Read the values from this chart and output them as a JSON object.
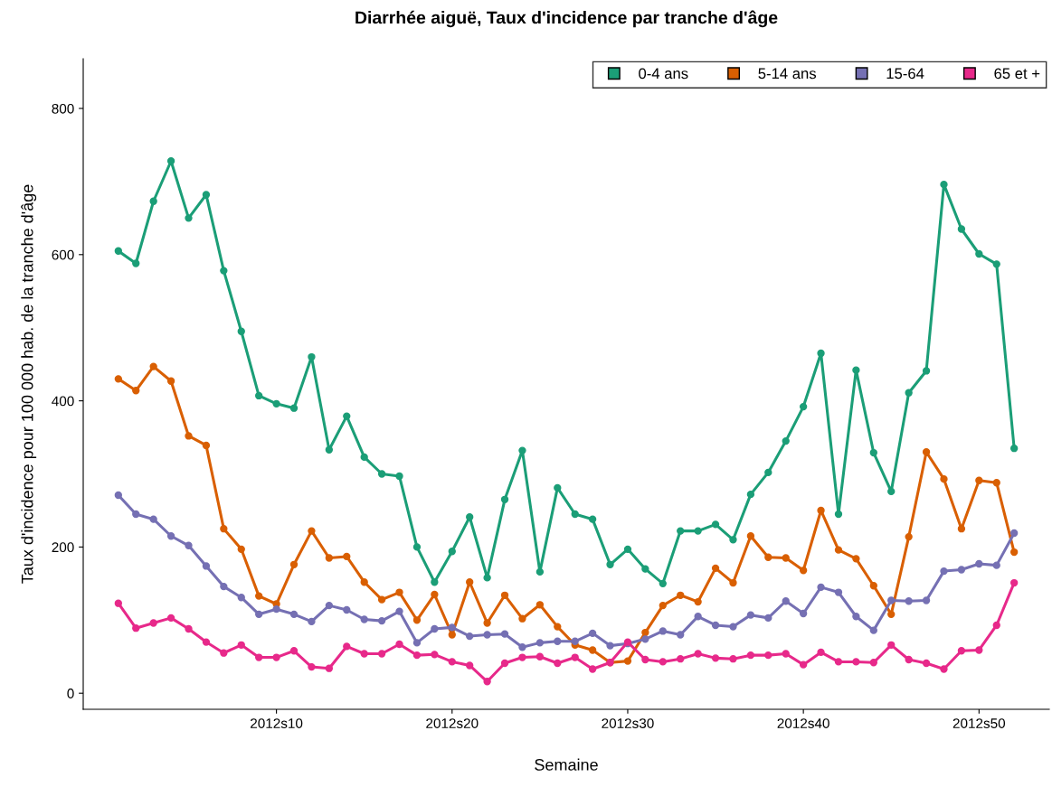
{
  "chart_data": {
    "type": "line",
    "title": "Diarrhée aiguë, Taux d'incidence par tranche d'âge",
    "xlabel": "Semaine",
    "ylabel": "Taux d'incidence pour 100 000 hab. de la tranche d'âge",
    "categories": [
      null,
      null,
      null,
      null,
      null,
      null,
      null,
      null,
      null,
      "2012s10",
      null,
      null,
      null,
      null,
      null,
      null,
      null,
      null,
      null,
      "2012s20",
      null,
      null,
      null,
      null,
      null,
      null,
      null,
      null,
      null,
      "2012s30",
      null,
      null,
      null,
      null,
      null,
      null,
      null,
      null,
      null,
      "2012s40",
      null,
      null,
      null,
      null,
      null,
      null,
      null,
      null,
      null,
      "2012s50",
      null,
      null
    ],
    "ylim": [
      -22,
      868
    ],
    "yticks": [
      0,
      200,
      400,
      600,
      800
    ],
    "grid": false,
    "legend": "top right",
    "marker": "circle",
    "line_style": "solid",
    "series": [
      {
        "name": "0-4 ans",
        "color": "#1b9e77",
        "values": [
          605,
          588,
          673,
          728,
          650,
          682,
          578,
          495,
          407,
          396,
          390,
          460,
          333,
          379,
          323,
          300,
          297,
          200,
          152,
          194,
          241,
          158,
          265,
          332,
          166,
          281,
          245,
          238,
          176,
          197,
          170,
          150,
          222,
          222,
          231,
          210,
          272,
          302,
          345,
          392,
          465,
          245,
          442,
          329,
          276,
          411,
          441,
          696,
          635,
          601,
          587,
          335
        ]
      },
      {
        "name": "5-14 ans",
        "color": "#d95f02",
        "values": [
          430,
          414,
          447,
          427,
          352,
          339,
          225,
          197,
          133,
          122,
          176,
          222,
          185,
          187,
          152,
          128,
          138,
          100,
          135,
          80,
          152,
          96,
          134,
          102,
          121,
          91,
          66,
          59,
          42,
          44,
          83,
          120,
          134,
          125,
          171,
          151,
          215,
          186,
          185,
          168,
          250,
          196,
          184,
          147,
          108,
          214,
          330,
          293,
          225,
          291,
          288,
          193
        ]
      },
      {
        "name": "15-64",
        "color": "#7570b3",
        "values": [
          271,
          245,
          238,
          215,
          202,
          174,
          146,
          131,
          108,
          115,
          108,
          98,
          120,
          114,
          101,
          99,
          112,
          69,
          88,
          90,
          78,
          80,
          81,
          63,
          69,
          71,
          71,
          82,
          65,
          68,
          74,
          85,
          80,
          105,
          93,
          91,
          107,
          103,
          126,
          109,
          145,
          138,
          105,
          86,
          127,
          126,
          127,
          167,
          169,
          177,
          175,
          219
        ]
      },
      {
        "name": "65 et +",
        "color": "#e7298a",
        "values": [
          123,
          89,
          96,
          103,
          88,
          70,
          55,
          66,
          49,
          49,
          58,
          36,
          34,
          64,
          54,
          54,
          67,
          52,
          53,
          43,
          38,
          16,
          41,
          49,
          50,
          41,
          49,
          33,
          42,
          70,
          46,
          43,
          47,
          54,
          48,
          47,
          52,
          52,
          54,
          39,
          56,
          43,
          43,
          42,
          66,
          46,
          41,
          33,
          58,
          59,
          93,
          151
        ]
      }
    ]
  }
}
